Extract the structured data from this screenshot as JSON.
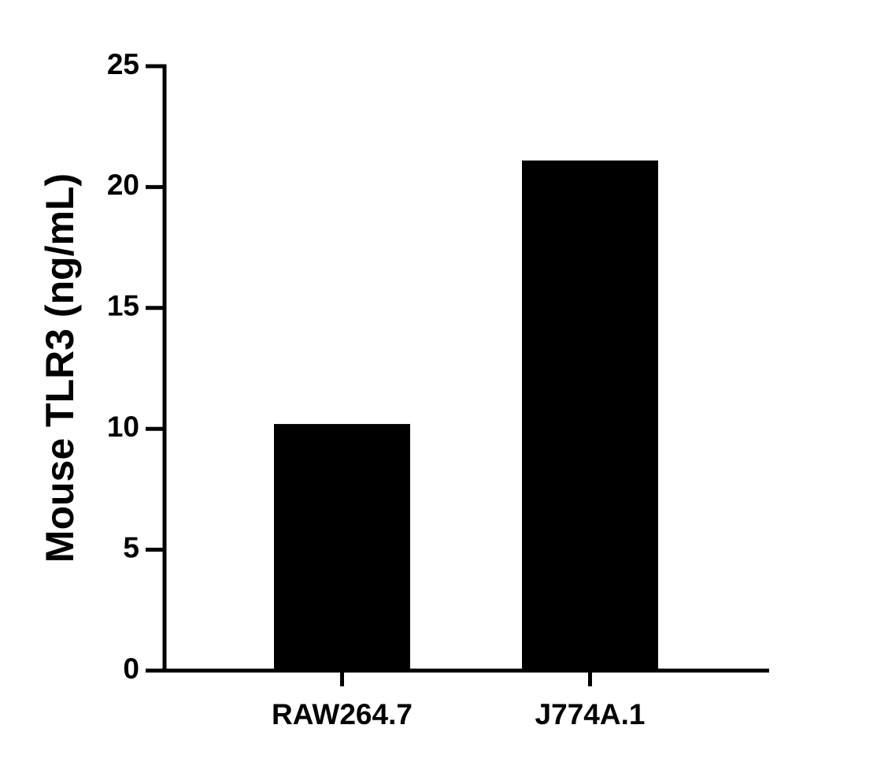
{
  "chart_data": {
    "type": "bar",
    "y_label": "Mouse TLR3 (ng/mL)",
    "categories": [
      "RAW264.7",
      "J774A.1"
    ],
    "values": [
      10.2,
      21.1
    ],
    "color": "#000000",
    "ylim": [
      0,
      25
    ],
    "yticks": [
      0,
      5,
      10,
      15,
      20,
      25
    ],
    "grid": false
  }
}
